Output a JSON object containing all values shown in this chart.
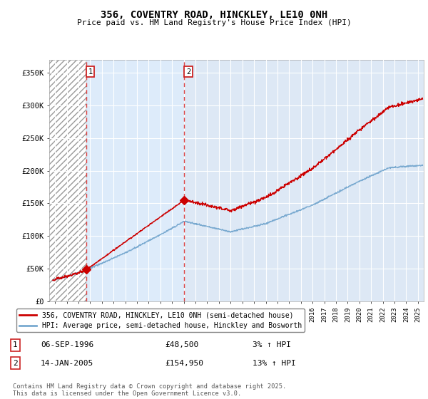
{
  "title": "356, COVENTRY ROAD, HINCKLEY, LE10 0NH",
  "subtitle": "Price paid vs. HM Land Registry's House Price Index (HPI)",
  "ylim": [
    0,
    370000
  ],
  "xlim_start": 1993.5,
  "xlim_end": 2025.5,
  "plot_bg_color": "#dde8f5",
  "grid_color": "#ffffff",
  "sale1_date": 1996.68,
  "sale1_price": 48500,
  "sale2_date": 2005.04,
  "sale2_price": 154950,
  "red_line_color": "#cc0000",
  "blue_line_color": "#7aaad0",
  "dashed_line_color": "#dd4444",
  "legend_label_red": "356, COVENTRY ROAD, HINCKLEY, LE10 0NH (semi-detached house)",
  "legend_label_blue": "HPI: Average price, semi-detached house, Hinckley and Bosworth",
  "footer": "Contains HM Land Registry data © Crown copyright and database right 2025.\nThis data is licensed under the Open Government Licence v3.0.",
  "annotation1_date": "06-SEP-1996",
  "annotation1_price": "£48,500",
  "annotation1_pct": "3% ↑ HPI",
  "annotation2_date": "14-JAN-2005",
  "annotation2_price": "£154,950",
  "annotation2_pct": "13% ↑ HPI",
  "yticks": [
    0,
    50000,
    100000,
    150000,
    200000,
    250000,
    300000,
    350000
  ],
  "ytick_labels": [
    "£0",
    "£50K",
    "£100K",
    "£150K",
    "£200K",
    "£250K",
    "£300K",
    "£350K"
  ]
}
